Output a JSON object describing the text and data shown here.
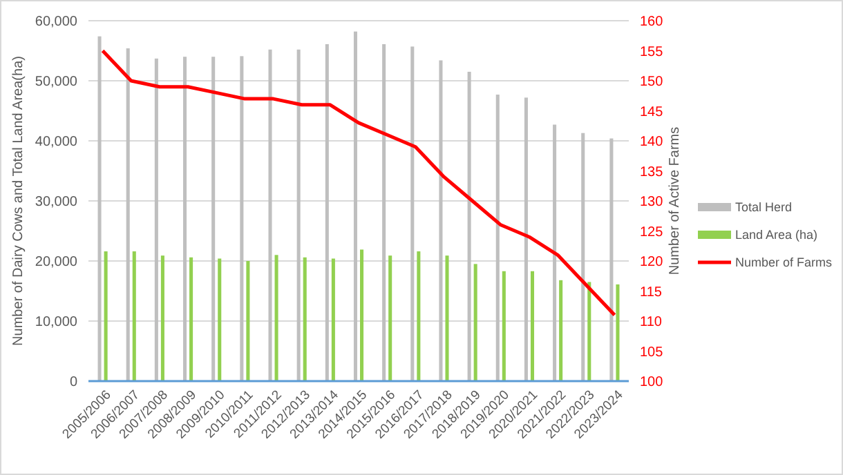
{
  "chart_data": {
    "type": "bar",
    "ylabel": "Number of Dairy Cows and Total Land Area(ha)",
    "y2label": "Number of Active Farms",
    "categories": [
      "2005/2006",
      "2006/2007",
      "2007/2008",
      "2008/2009",
      "2009/2010",
      "2010/2011",
      "2011/2012",
      "2012/2013",
      "2013/2014",
      "2014/2015",
      "2015/2016",
      "2016/2017",
      "2017/2018",
      "2018/2019",
      "2019/2020",
      "2020/2021",
      "2021/2022",
      "2022/2023",
      "2023/2024"
    ],
    "series": [
      {
        "name": "Total Herd",
        "color": "#bfbfbf",
        "values": [
          57400,
          55400,
          53700,
          54000,
          54000,
          54100,
          55200,
          55200,
          56100,
          58200,
          56100,
          55700,
          53400,
          51500,
          47700,
          47200,
          42700,
          41300,
          40400
        ]
      },
      {
        "name": "Land Area (ha)",
        "color": "#92d050",
        "values": [
          21600,
          21600,
          20900,
          20600,
          20400,
          20000,
          21000,
          20600,
          20400,
          21900,
          20900,
          21600,
          20900,
          19500,
          18300,
          18300,
          16800,
          16500,
          16100
        ]
      },
      {
        "name": "Number of Farms",
        "type": "line",
        "axis": "y2",
        "color": "#ff0000",
        "values": [
          155,
          150,
          149,
          149,
          148,
          147,
          147,
          146,
          146,
          143,
          141,
          139,
          134,
          130,
          126,
          124,
          121,
          116,
          111
        ]
      }
    ],
    "ylim": [
      0,
      60000
    ],
    "yticks": [
      {
        "value": 0,
        "label": "0"
      },
      {
        "value": 10000,
        "label": "10,000"
      },
      {
        "value": 20000,
        "label": "20,000"
      },
      {
        "value": 30000,
        "label": "30,000"
      },
      {
        "value": 40000,
        "label": "40,000"
      },
      {
        "value": 50000,
        "label": "50,000"
      },
      {
        "value": 60000,
        "label": "60,000"
      }
    ],
    "y2lim": [
      100,
      160
    ],
    "y2ticks": [
      100,
      105,
      110,
      115,
      120,
      125,
      130,
      135,
      140,
      145,
      150,
      155,
      160
    ],
    "grid": "y",
    "legend": "right",
    "marker": "none",
    "line_style": "solid"
  }
}
